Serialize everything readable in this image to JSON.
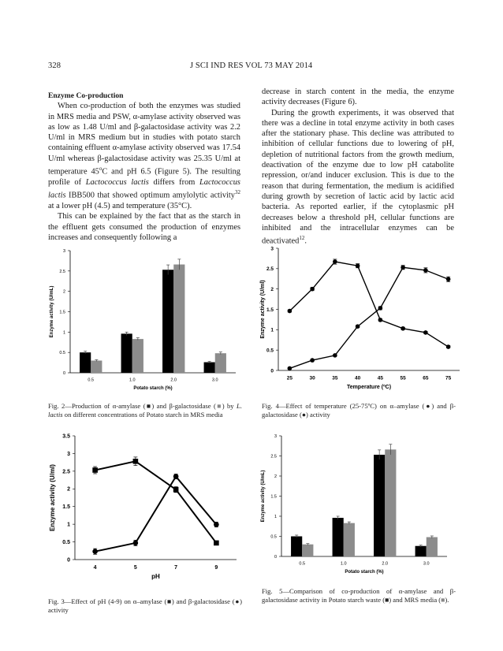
{
  "header": {
    "page_number": "328",
    "journal_line": "J SCI IND RES VOL 73 MAY 2014"
  },
  "left_column": {
    "section_title": "Enzyme Co-production",
    "p1_parts": [
      "When co-production of both the enzymes was studied in MRS media and PSW, α-amylase activity observed was as low as 1.48 U/ml and β-galactosidase activity was 2.2 U/ml in MRS medium but in studies with potato starch containing effluent α-amylase activity observed was 17.54 U/ml whereas β-galactosidase activity was 25.35 U/ml at temperature 45",
      "o",
      "C and pH 6.5 (Figure 5). The resulting profile of ",
      "Lactococcus lactis",
      " differs from ",
      "Lactococcus lactis",
      " IBB500 that showed optimum amylolytic activity",
      "32",
      " at a lower pH (4.5) and temperature (35°C)."
    ],
    "p2": "This can be explained by the fact that as the starch in the effluent gets consumed the production of enzymes increases and consequently following a"
  },
  "right_column": {
    "p1": "decrease in starch content in the media, the enzyme activity decreases (Figure 6).",
    "p2_parts": [
      "During the growth experiments, it was observed that there was a decline in total enzyme activity in both cases after the stationary phase. This decline was attributed to inhibition of cellular functions due to lowering of pH, depletion of nutritional factors from the growth medium, deactivation of the enzyme due to low pH catabolite repression, or/and inducer exclusion. This is due to the reason that during fermentation, the medium is acidified during growth by secretion of lactic acid by lactic acid bacteria. As reported earlier, if the cytoplasmic pH decreases below a threshold pH, cellular functions are inhibited and the intracellular enzymes can be deactivated",
      "12",
      "."
    ]
  },
  "captions": {
    "fig2_parts": [
      "Fig. 2—Production of α-amylase (■) and β-galactosidase (",
      "■",
      ") by ",
      "L. lactis",
      " on different concentrations of Potato starch in MRS media"
    ],
    "fig3": "Fig. 3—Effect of pH (4-9) on α–amylase (■) and β-galactosidase (●) activity",
    "fig4": "Fig. 4—Effect of temperature (25-75ºC) on α–amylase (●) and β-galactosidase (●) activity",
    "fig5_parts": [
      "Fig. 5—Comparison of co-production of α-amylase and β-galactosidase activity in Potato starch waste (■) and MRS media (",
      "■",
      ")."
    ]
  },
  "chart_data": [
    {
      "type": "bar",
      "figure": "Fig. 2",
      "categories": [
        "0.5",
        "1.0",
        "2.0",
        "3.0"
      ],
      "series": [
        {
          "values": [
            0.5,
            0.96,
            2.53,
            0.26
          ],
          "errors": [
            0.03,
            0.04,
            0.12,
            0.02
          ],
          "color": "#000000"
        },
        {
          "values": [
            0.3,
            0.83,
            2.66,
            0.48
          ],
          "errors": [
            0.02,
            0.03,
            0.13,
            0.03
          ],
          "color": "#8c8c8c"
        }
      ],
      "xlabel": "Potato starch (%)",
      "ylabel": "Enzyme activity (U/mL)",
      "ylim": [
        0,
        3
      ],
      "yticks": [
        "0",
        "0.5",
        "1",
        "1.5",
        "2",
        "2.5",
        "3"
      ]
    },
    {
      "type": "line",
      "figure": "Fig. 4",
      "categories": [
        "25",
        "30",
        "35",
        "40",
        "45",
        "55",
        "65",
        "75"
      ],
      "series": [
        {
          "marker": "circle",
          "values": [
            1.46,
            2.0,
            2.67,
            2.57,
            1.24,
            1.03,
            0.93,
            0.58
          ],
          "errors": [
            0.03,
            0.04,
            0.06,
            0.05,
            0.03,
            0.03,
            0.03,
            0.03
          ]
        },
        {
          "marker": "circle",
          "values": [
            0.05,
            0.25,
            0.37,
            1.08,
            1.53,
            2.53,
            2.46,
            2.24
          ],
          "errors": [
            0.01,
            0.02,
            0.02,
            0.03,
            0.04,
            0.05,
            0.06,
            0.06
          ]
        }
      ],
      "xlabel": "Temperature (ºC)",
      "ylabel": "Enzyme activity (U/ml)",
      "ylim": [
        0,
        3
      ],
      "yticks": [
        "0",
        "0.5",
        "1",
        "1.5",
        "2",
        "2.5",
        "3"
      ]
    },
    {
      "type": "line",
      "figure": "Fig. 3",
      "categories": [
        "4",
        "5",
        "7",
        "9"
      ],
      "series": [
        {
          "marker": "square",
          "values": [
            2.53,
            2.78,
            1.98,
            0.47
          ],
          "errors": [
            0.1,
            0.12,
            0.08,
            0.02
          ]
        },
        {
          "marker": "circle",
          "values": [
            0.23,
            0.47,
            2.35,
            0.99
          ],
          "errors": [
            0.08,
            0.08,
            0.07,
            0.07
          ]
        }
      ],
      "xlabel": "pH",
      "ylabel": "Enzyme activity (U/ml)",
      "ylim": [
        0,
        3.5
      ],
      "yticks": [
        "0",
        "0.5",
        "1",
        "1.5",
        "2",
        "2.5",
        "3",
        "3.5"
      ]
    },
    {
      "type": "bar",
      "figure": "Fig. 5",
      "categories": [
        "0.5",
        "1.0",
        "2.0",
        "3.0"
      ],
      "series": [
        {
          "values": [
            0.5,
            0.96,
            2.53,
            0.26
          ],
          "errors": [
            0.03,
            0.04,
            0.12,
            0.02
          ],
          "color": "#000000"
        },
        {
          "values": [
            0.3,
            0.83,
            2.66,
            0.48
          ],
          "errors": [
            0.02,
            0.03,
            0.13,
            0.03
          ],
          "color": "#8c8c8c"
        }
      ],
      "xlabel": "Potato starch (%)",
      "ylabel": "Enzyme activity (U/mL)",
      "ylim": [
        0,
        3
      ],
      "yticks": [
        "0",
        "0.5",
        "1",
        "1.5",
        "2",
        "2.5",
        "3"
      ]
    }
  ]
}
